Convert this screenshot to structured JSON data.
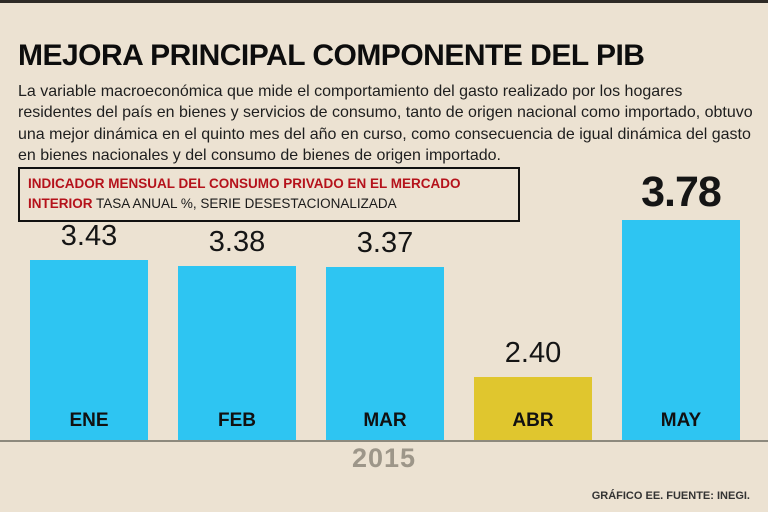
{
  "header": {
    "title": "MEJORA PRINCIPAL COMPONENTE DEL PIB",
    "description": "La variable macroeconómica que mide el comportamiento del gasto realizado por los hogares residentes del país en bienes y servicios de consumo, tanto de origen nacional como importado, obtuvo una mejor dinámica en el quinto mes del año en curso, como consecuencia de igual dinámica del gasto en bienes nacionales y del consumo de bienes de origen importado."
  },
  "label_box": {
    "line1_bold": "INDICADOR MENSUAL DEL CONSUMO PRIVADO EN EL MERCADO INTERIOR",
    "line2_normal": "TASA ANUAL %, SERIE DESESTACIONALIZADA"
  },
  "chart_data": {
    "type": "bar",
    "title": "INDICADOR MENSUAL DEL CONSUMO PRIVADO EN EL MERCADO INTERIOR",
    "subtitle": "TASA ANUAL %, SERIE DESESTACIONALIZADA",
    "categories": [
      "ENE",
      "FEB",
      "MAR",
      "ABR",
      "MAY"
    ],
    "values": [
      3.43,
      3.38,
      3.37,
      2.4,
      3.78
    ],
    "value_labels": [
      "3.43",
      "3.38",
      "3.37",
      "2.40",
      "3.78"
    ],
    "bar_colors": [
      "#2EC5F2",
      "#2EC5F2",
      "#2EC5F2",
      "#E0C62E",
      "#2EC5F2"
    ],
    "highlight_index": 4,
    "xlabel": "2015",
    "ylabel": "",
    "value_axis_min": 1.85,
    "value_axis_max": 3.9,
    "grid": false,
    "legend": "none",
    "axis_note": "value axis truncated (bars do not start at zero)"
  },
  "footer": {
    "credit": "GRÁFICO EE. FUENTE: INEGI."
  },
  "colors": {
    "background": "#ECE2D2",
    "bar_cyan": "#2EC5F2",
    "bar_yellow": "#E0C62E",
    "label_red": "#B5121B",
    "axis_gray": "#8d897d",
    "year_gray": "#9d9689"
  }
}
